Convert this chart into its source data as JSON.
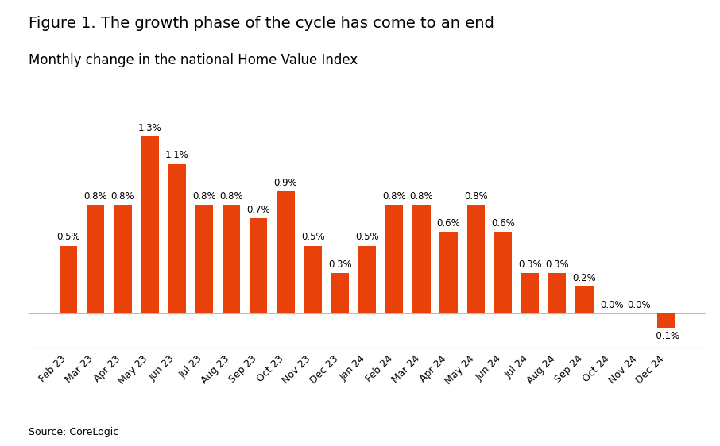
{
  "title": "Figure 1. The growth phase of the cycle has come to an end",
  "subtitle": "Monthly change in the national Home Value Index",
  "source": "Source: CoreLogic",
  "categories": [
    "Feb 23",
    "Mar 23",
    "Apr 23",
    "May 23",
    "Jun 23",
    "Jul 23",
    "Aug 23",
    "Sep 23",
    "Oct 23",
    "Nov 23",
    "Dec 23",
    "Jan 24",
    "Feb 24",
    "Mar 24",
    "Apr 24",
    "May 24",
    "Jun 24",
    "Jul 24",
    "Aug 24",
    "Sep 24",
    "Oct 24",
    "Nov 24",
    "Dec 24"
  ],
  "values": [
    0.5,
    0.8,
    0.8,
    1.3,
    1.1,
    0.8,
    0.8,
    0.7,
    0.9,
    0.5,
    0.3,
    0.5,
    0.8,
    0.8,
    0.6,
    0.8,
    0.6,
    0.3,
    0.3,
    0.2,
    0.0,
    0.0,
    -0.1
  ],
  "bar_color": "#E8420A",
  "background_color": "#FFFFFF",
  "title_fontsize": 14,
  "subtitle_fontsize": 12,
  "label_fontsize": 8.5,
  "tick_fontsize": 9,
  "source_fontsize": 9,
  "ylim_min": -0.25,
  "ylim_max": 1.55
}
